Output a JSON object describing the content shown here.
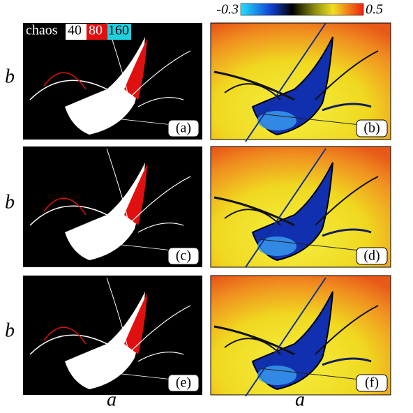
{
  "colorbar": {
    "min": -0.3,
    "max": 0.5
  },
  "legend": {
    "title": "chaos",
    "items": [
      "40",
      "80",
      "160"
    ]
  },
  "panels": [
    {
      "label": "(a)"
    },
    {
      "label": "(b)"
    },
    {
      "label": "(c)"
    },
    {
      "label": "(d)"
    },
    {
      "label": "(e)"
    },
    {
      "label": "(f)"
    }
  ],
  "axis_labels": {
    "y": [
      "b",
      "b",
      "b"
    ],
    "x": [
      "a",
      "a"
    ]
  }
}
